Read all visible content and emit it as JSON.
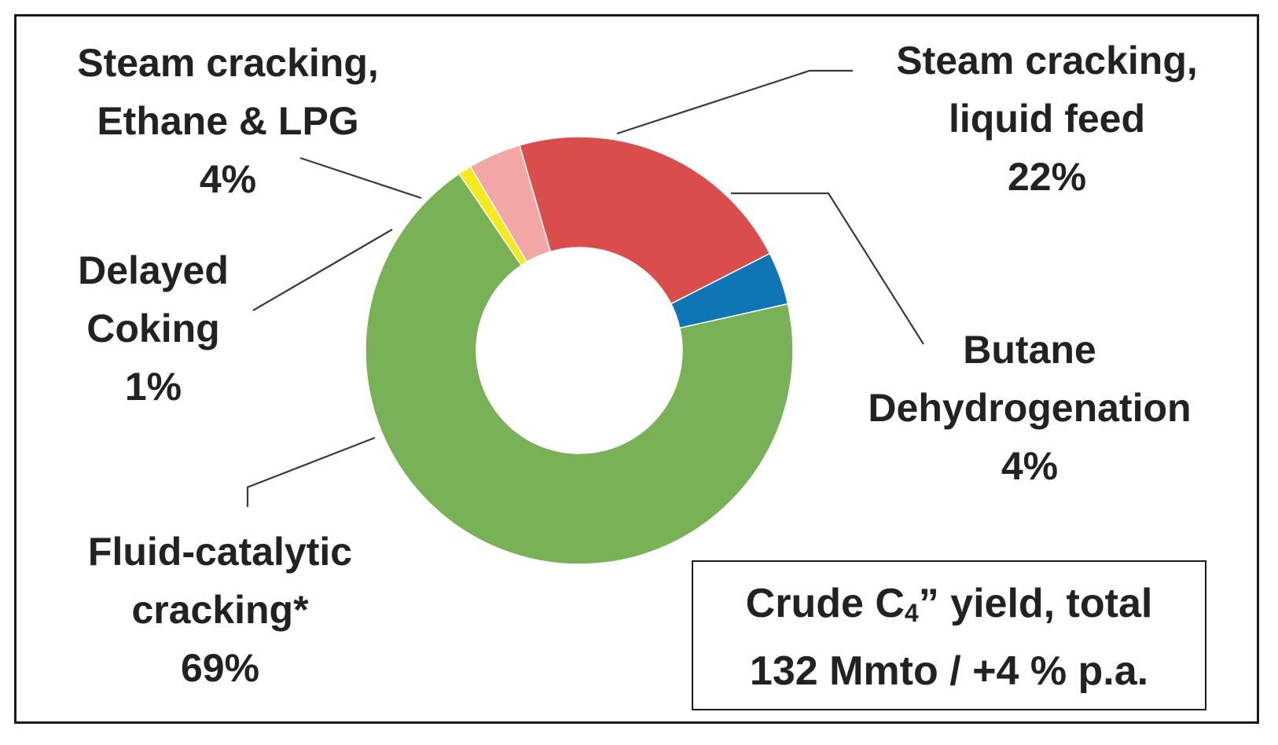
{
  "chart_data": {
    "type": "pie",
    "variant": "donut",
    "start_angle_deg": 0,
    "direction": "clockwise",
    "slices": [
      {
        "id": "bd",
        "label_lines": [
          "Butane",
          "Dehydrogenation"
        ],
        "pct_label": "4%",
        "value": 4,
        "color": "#0e76b5"
      },
      {
        "id": "fcc",
        "label_lines": [
          "Fluid-catalytic",
          "cracking*"
        ],
        "pct_label": "69%",
        "value": 69,
        "color": "#78b156"
      },
      {
        "id": "dc",
        "label_lines": [
          "Delayed",
          "Coking"
        ],
        "pct_label": "1%",
        "value": 1,
        "color": "#f5ea1c"
      },
      {
        "id": "scel",
        "label_lines": [
          "Steam cracking,",
          "Ethane & LPG"
        ],
        "pct_label": "4%",
        "value": 4,
        "color": "#f2a7a6"
      },
      {
        "id": "sclf",
        "label_lines": [
          "Steam cracking,",
          "liquid feed"
        ],
        "pct_label": "22%",
        "value": 22,
        "color": "#d94d4c"
      }
    ]
  },
  "total_box": {
    "line1_prefix": "Crude C",
    "line1_sub": "4",
    "line1_suffix": "” yield, total",
    "line2": "132 Mmto / +4 % p.a."
  }
}
